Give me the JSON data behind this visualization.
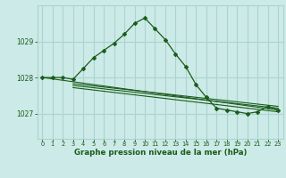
{
  "bg_color": "#cceae7",
  "grid_color": "#aad4d0",
  "line_color": "#1a5c1a",
  "marker_color": "#1a5c1a",
  "axis_label_color": "#1a5c1a",
  "tick_label_color": "#1a5c1a",
  "xlabel": "Graphe pression niveau de la mer (hPa)",
  "ylim": [
    1026.3,
    1030.0
  ],
  "yticks": [
    1027,
    1028,
    1029
  ],
  "xlim": [
    -0.5,
    23.5
  ],
  "xticks": [
    0,
    1,
    2,
    3,
    4,
    5,
    6,
    7,
    8,
    9,
    10,
    11,
    12,
    13,
    14,
    15,
    16,
    17,
    18,
    19,
    20,
    21,
    22,
    23
  ],
  "series1": [
    1028.0,
    1028.0,
    1028.0,
    1027.95,
    1028.25,
    1028.55,
    1028.75,
    1028.95,
    1029.2,
    1029.5,
    1029.65,
    1029.35,
    1029.05,
    1028.65,
    1028.3,
    1027.8,
    1027.45,
    1027.15,
    1027.1,
    1027.05,
    1027.0,
    1027.05,
    1027.2,
    1027.1
  ],
  "trend1_x": [
    0,
    23
  ],
  "trend1_y": [
    1028.0,
    1027.1
  ],
  "trend2_x": [
    3,
    23
  ],
  "trend2_y": [
    1027.72,
    1027.05
  ],
  "trend3_x": [
    3,
    23
  ],
  "trend3_y": [
    1027.78,
    1027.15
  ],
  "trend4_x": [
    3,
    23
  ],
  "trend4_y": [
    1027.83,
    1027.2
  ]
}
